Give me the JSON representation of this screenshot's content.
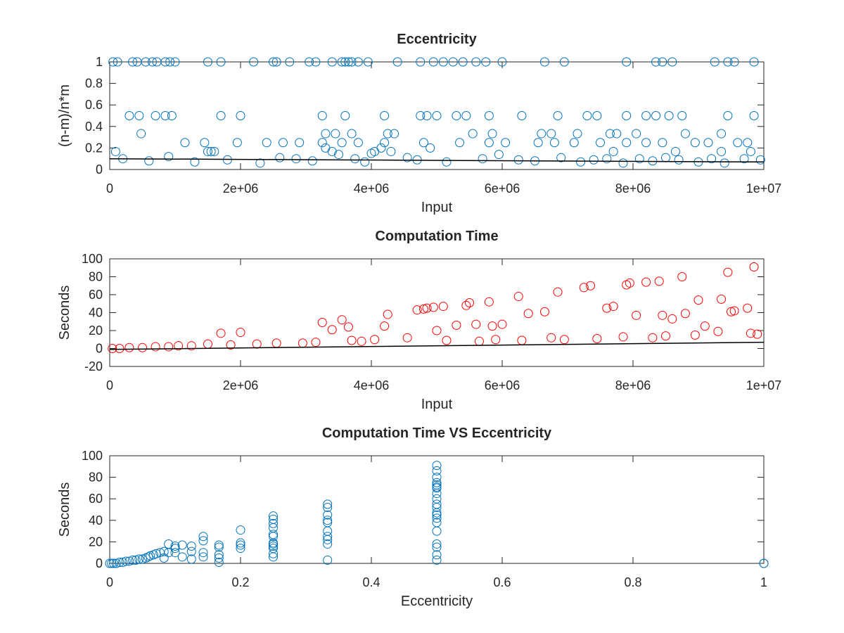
{
  "chart_data": [
    {
      "type": "scatter",
      "title": "Eccentricity",
      "xlabel": "Input",
      "ylabel": "(n-m)/n*m",
      "xlim": [
        0,
        10000000
      ],
      "ylim": [
        0,
        1
      ],
      "x_ticks": [
        0,
        2000000,
        4000000,
        6000000,
        8000000,
        10000000
      ],
      "x_tick_labels": [
        "0",
        "2e+06",
        "4e+06",
        "6e+06",
        "8e+06",
        "1e+07"
      ],
      "y_ticks": [
        0,
        0.2,
        0.4,
        0.6,
        0.8,
        1
      ],
      "y_tick_labels": [
        "0",
        "0.2",
        "0.4",
        "0.6",
        "0.8",
        "1"
      ],
      "grid": false,
      "marker": "circle",
      "color": "#0072BD",
      "series": [
        {
          "style": "markers",
          "x": [
            50000,
            120000,
            350000,
            420000,
            550000,
            650000,
            720000,
            850000,
            920000,
            1000000,
            1500000,
            1700000,
            2200000,
            2500000,
            2550000,
            2750000,
            3050000,
            3150000,
            3400000,
            3550000,
            3600000,
            3650000,
            3700000,
            3800000,
            3950000,
            4400000,
            4750000,
            4950000,
            5100000,
            5250000,
            5400000,
            5600000,
            5750000,
            6000000,
            6650000,
            6950000,
            7900000,
            8350000,
            8450000,
            8600000,
            9250000,
            9450000,
            9550000,
            9850000,
            300000,
            450000,
            700000,
            850000,
            950000,
            1700000,
            2000000,
            3250000,
            3600000,
            4200000,
            4750000,
            4850000,
            5000000,
            5300000,
            5450000,
            5800000,
            6300000,
            6850000,
            7300000,
            7450000,
            7900000,
            8200000,
            8350000,
            8550000,
            8750000,
            9450000,
            9850000,
            480000,
            3300000,
            3450000,
            3700000,
            4250000,
            4350000,
            5550000,
            5850000,
            6600000,
            6750000,
            7150000,
            7650000,
            7750000,
            8050000,
            8800000,
            9350000,
            1150000,
            1450000,
            1950000,
            2400000,
            2650000,
            2900000,
            3250000,
            3550000,
            3800000,
            4200000,
            4800000,
            5350000,
            5800000,
            6050000,
            6550000,
            6800000,
            7100000,
            7500000,
            7900000,
            8200000,
            8450000,
            8950000,
            9150000,
            9600000,
            9750000,
            90000,
            1500000,
            1550000,
            1600000,
            3400000,
            4050000,
            4300000,
            7700000,
            8650000,
            9350000,
            9800000,
            200000,
            600000,
            900000,
            1300000,
            1800000,
            2300000,
            2600000,
            2850000,
            3100000,
            3300000,
            3500000,
            3750000,
            3900000,
            4000000,
            4150000,
            4550000,
            4700000,
            4900000,
            5150000,
            5700000,
            5950000,
            6250000,
            6500000,
            6900000,
            7200000,
            7400000,
            7600000,
            7850000,
            8100000,
            8300000,
            8500000,
            8700000,
            9000000,
            9200000,
            9400000,
            9700000,
            9950000
          ],
          "y": [
            1,
            1,
            1,
            1,
            1,
            1,
            1,
            1,
            1,
            1,
            1,
            1,
            1,
            1,
            1,
            1,
            1,
            1,
            1,
            1,
            1,
            1,
            1,
            1,
            1,
            1,
            1,
            1,
            1,
            1,
            1,
            1,
            1,
            1,
            1,
            1,
            1,
            1,
            1,
            1,
            1,
            1,
            1,
            1,
            0.5,
            0.5,
            0.5,
            0.5,
            0.5,
            0.5,
            0.5,
            0.5,
            0.5,
            0.5,
            0.5,
            0.5,
            0.5,
            0.5,
            0.5,
            0.5,
            0.5,
            0.5,
            0.5,
            0.5,
            0.5,
            0.5,
            0.5,
            0.5,
            0.5,
            0.5,
            0.5,
            0.333,
            0.333,
            0.333,
            0.333,
            0.333,
            0.333,
            0.333,
            0.333,
            0.333,
            0.333,
            0.333,
            0.333,
            0.333,
            0.333,
            0.333,
            0.333,
            0.25,
            0.25,
            0.25,
            0.25,
            0.25,
            0.25,
            0.25,
            0.25,
            0.25,
            0.25,
            0.25,
            0.25,
            0.25,
            0.25,
            0.25,
            0.25,
            0.25,
            0.25,
            0.25,
            0.25,
            0.25,
            0.25,
            0.25,
            0.25,
            0.25,
            0.167,
            0.167,
            0.167,
            0.167,
            0.167,
            0.167,
            0.167,
            0.167,
            0.167,
            0.167,
            0.167,
            0.1,
            0.08,
            0.12,
            0.07,
            0.09,
            0.06,
            0.11,
            0.1,
            0.08,
            0.2,
            0.14,
            0.1,
            0.07,
            0.15,
            0.2,
            0.11,
            0.09,
            0.2,
            0.07,
            0.1,
            0.14,
            0.09,
            0.08,
            0.11,
            0.07,
            0.09,
            0.1,
            0.06,
            0.1,
            0.08,
            0.11,
            0.09,
            0.07,
            0.1,
            0.06,
            0.1,
            0.09
          ]
        },
        {
          "style": "line",
          "color": "#000000",
          "x": [
            0,
            10000000
          ],
          "y": [
            0.1,
            0.07
          ]
        }
      ]
    },
    {
      "type": "scatter",
      "title": "Computation Time",
      "xlabel": "Input",
      "ylabel": "Seconds",
      "xlim": [
        0,
        10000000
      ],
      "ylim": [
        -20,
        100
      ],
      "x_ticks": [
        0,
        2000000,
        4000000,
        6000000,
        8000000,
        10000000
      ],
      "x_tick_labels": [
        "0",
        "2e+06",
        "4e+06",
        "6e+06",
        "8e+06",
        "1e+07"
      ],
      "y_ticks": [
        -20,
        0,
        20,
        40,
        60,
        80,
        100
      ],
      "y_tick_labels": [
        "-20",
        "0",
        "20",
        "40",
        "60",
        "80",
        "100"
      ],
      "grid": false,
      "marker": "circle",
      "color": "#FF0000",
      "series": [
        {
          "style": "markers",
          "x": [
            9850000,
            9450000,
            8750000,
            8400000,
            8200000,
            7950000,
            7900000,
            7350000,
            7250000,
            6850000,
            6250000,
            5800000,
            5500000,
            5450000,
            5100000,
            4950000,
            4850000,
            4800000,
            4700000,
            9350000,
            9550000,
            9500000,
            9750000,
            9000000,
            8800000,
            8600000,
            8450000,
            8050000,
            7700000,
            7600000,
            6650000,
            6400000,
            6000000,
            5850000,
            5600000,
            5300000,
            4250000,
            4200000,
            3550000,
            3650000,
            3250000,
            3400000,
            1700000,
            2000000,
            5000000,
            9100000,
            9300000,
            9900000,
            9800000,
            8950000,
            8500000,
            8300000,
            7850000,
            7450000,
            6950000,
            6750000,
            6300000,
            5900000,
            5650000,
            5150000,
            4550000,
            4050000,
            3850000,
            3700000,
            3150000,
            2950000,
            2550000,
            2250000,
            1850000,
            1500000,
            1250000,
            1050000,
            900000,
            700000,
            500000,
            300000,
            150000,
            40000
          ],
          "y": [
            91,
            85,
            80,
            75,
            74,
            73,
            71,
            70,
            68,
            63,
            58,
            52,
            51,
            48,
            47,
            46,
            45,
            44,
            43,
            55,
            42,
            41,
            45,
            54,
            39,
            33,
            37,
            37,
            47,
            45,
            41,
            39,
            27,
            25,
            27,
            26,
            38,
            25,
            32,
            24,
            29,
            21,
            17,
            18,
            20,
            25,
            19,
            16,
            17,
            15,
            14,
            12,
            13,
            11,
            10,
            12,
            9,
            10,
            8,
            9,
            12,
            10,
            8,
            9,
            7,
            6,
            6,
            5,
            4,
            5,
            3,
            3,
            2,
            2,
            1,
            1,
            0,
            0
          ]
        },
        {
          "style": "line",
          "color": "#000000",
          "x": [
            0,
            10000000
          ],
          "y": [
            -1,
            7
          ]
        }
      ]
    },
    {
      "type": "scatter",
      "title": "Computation Time VS Eccentricity",
      "xlabel": "Eccentricity",
      "ylabel": "Seconds",
      "xlim": [
        0,
        1
      ],
      "ylim": [
        0,
        100
      ],
      "x_ticks": [
        0,
        0.2,
        0.4,
        0.6,
        0.8,
        1
      ],
      "x_tick_labels": [
        "0",
        "0.2",
        "0.4",
        "0.6",
        "0.8",
        "1"
      ],
      "y_ticks": [
        0,
        20,
        40,
        60,
        80,
        100
      ],
      "y_tick_labels": [
        "0",
        "20",
        "40",
        "60",
        "80",
        "100"
      ],
      "grid": false,
      "marker": "circle",
      "color": "#0072BD",
      "series": [
        {
          "style": "markers",
          "x": [
            0.5,
            0.5,
            0.5,
            0.5,
            0.5,
            0.5,
            0.5,
            0.5,
            0.5,
            0.5,
            0.5,
            0.5,
            0.5,
            0.5,
            0.5,
            0.5,
            0.5,
            0.5,
            0.5,
            0.5,
            0.333,
            0.333,
            0.333,
            0.333,
            0.333,
            0.333,
            0.333,
            0.333,
            0.333,
            0.333,
            0.25,
            0.25,
            0.25,
            0.25,
            0.25,
            0.25,
            0.25,
            0.25,
            0.25,
            0.25,
            0.25,
            0.25,
            0.2,
            0.2,
            0.2,
            0.2,
            0.167,
            0.167,
            0.167,
            0.167,
            0.167,
            0.143,
            0.143,
            0.143,
            0.143,
            0.125,
            0.125,
            0.125,
            0.111,
            0.111,
            0.1,
            0.1,
            0.1,
            0.09,
            0.09,
            0.083,
            0.083,
            0.077,
            0.071,
            0.067,
            0.062,
            0.059,
            0.055,
            0.05,
            0.045,
            0.04,
            0.035,
            0.03,
            0.025,
            0.02,
            0.015,
            0.01,
            0.006,
            0.003,
            0,
            1,
            1
          ],
          "y": [
            91,
            86,
            80,
            75,
            73,
            71,
            70,
            65,
            60,
            55,
            52,
            47,
            45,
            42,
            38,
            30,
            18,
            15,
            8,
            3,
            55,
            52,
            45,
            40,
            38,
            30,
            25,
            22,
            18,
            3,
            44,
            41,
            37,
            33,
            27,
            25,
            19,
            16,
            14,
            9,
            6,
            18,
            31,
            19,
            17,
            14,
            17,
            15,
            8,
            5,
            1,
            25,
            21,
            10,
            6,
            16,
            11,
            4,
            17,
            6,
            16,
            14,
            10,
            18,
            10,
            11,
            5,
            10,
            9,
            8,
            7,
            6,
            5,
            4,
            4,
            3,
            3,
            2,
            2,
            1,
            1,
            0,
            0,
            0,
            0,
            0,
            0
          ]
        }
      ]
    }
  ]
}
